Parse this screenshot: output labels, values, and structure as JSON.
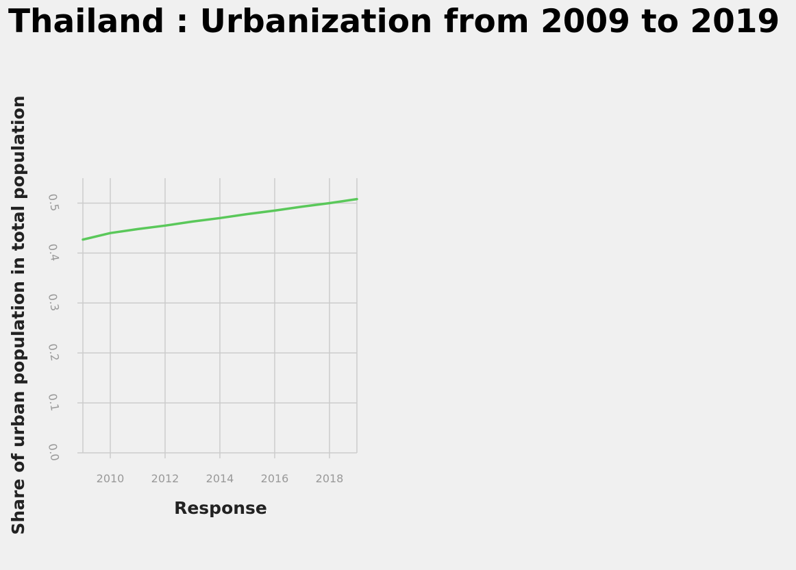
{
  "chart_data": {
    "type": "line",
    "title": "Thailand : Urbanization from 2009 to 2019",
    "xlabel": "Response",
    "ylabel": "Share of urban population in total population",
    "xlim": [
      2009,
      2019
    ],
    "ylim": [
      0,
      0.55
    ],
    "x_ticks": [
      2010,
      2012,
      2014,
      2016,
      2018
    ],
    "y_ticks": [
      "0.0",
      "0.1",
      "0.2",
      "0.3",
      "0.4",
      "0.5"
    ],
    "grid": true,
    "series": [
      {
        "color": "#5ac85a",
        "x": [
          2009,
          2010,
          2011,
          2012,
          2013,
          2014,
          2015,
          2016,
          2017,
          2018,
          2019
        ],
        "y": [
          0.427,
          0.44,
          0.448,
          0.455,
          0.463,
          0.47,
          0.478,
          0.485,
          0.493,
          0.5,
          0.508
        ]
      }
    ]
  }
}
